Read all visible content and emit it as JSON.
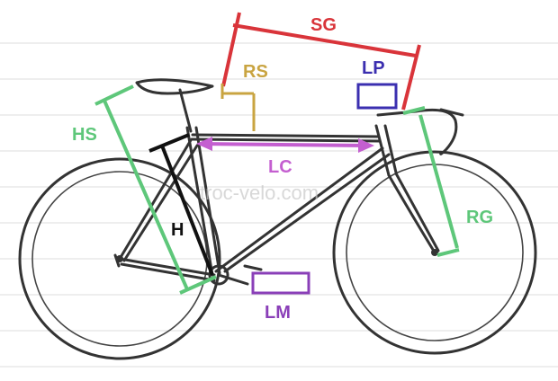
{
  "labels": {
    "sg": "SG",
    "rs": "RS",
    "lp": "LP",
    "hs": "HS",
    "lc": "LC",
    "rg": "RG",
    "h": "H",
    "lm": "LM"
  },
  "watermark": "troc-velo.com",
  "colors": {
    "sg": "#d9343a",
    "rs": "#c9a441",
    "lp": "#3b2fb0",
    "hs": "#5ec77a",
    "lc": "#c45fd0",
    "rg": "#5ec77a",
    "h": "#111111",
    "lm": "#8a3fb8",
    "frame": "#333333"
  }
}
